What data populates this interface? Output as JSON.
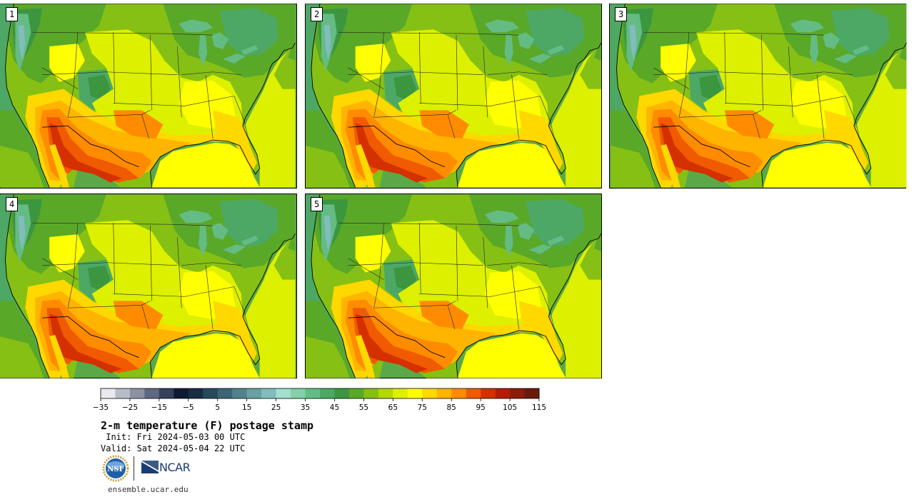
{
  "panels": [
    {
      "label": "1",
      "shift": 0
    },
    {
      "label": "2",
      "shift": 1
    },
    {
      "label": "3",
      "shift": 2
    },
    {
      "label": "4",
      "shift": 3
    },
    {
      "label": "5",
      "shift": 4
    }
  ],
  "colorbar": {
    "tick_labels": [
      "−35",
      "−25",
      "−15",
      "−5",
      "5",
      "15",
      "25",
      "35",
      "45",
      "55",
      "65",
      "75",
      "85",
      "95",
      "105",
      "115"
    ],
    "colors": [
      "#e8e8ee",
      "#b8bcc8",
      "#8a92a4",
      "#5e6880",
      "#34405c",
      "#0e1a30",
      "#182c44",
      "#28485c",
      "#3c6474",
      "#52828c",
      "#6aa0a4",
      "#82bcbc",
      "#a2e0d0",
      "#84d0a8",
      "#64bc84",
      "#4ca864",
      "#3c9640",
      "#5aa828",
      "#86c014",
      "#b4d800",
      "#dcf000",
      "#ffff00",
      "#ffd800",
      "#ffb400",
      "#ff8c00",
      "#f05a00",
      "#d43000",
      "#b41c08",
      "#8a1c0a",
      "#6a1a0c"
    ]
  },
  "title": "2-m temperature (F) postage stamp",
  "init": " Init: Fri 2024-05-03 00 UTC",
  "valid": "Valid: Sat 2024-05-04 22 UTC",
  "logos": {
    "nsf": "NSF",
    "ncar": "NCAR"
  },
  "url": "ensemble.ucar.edu"
}
